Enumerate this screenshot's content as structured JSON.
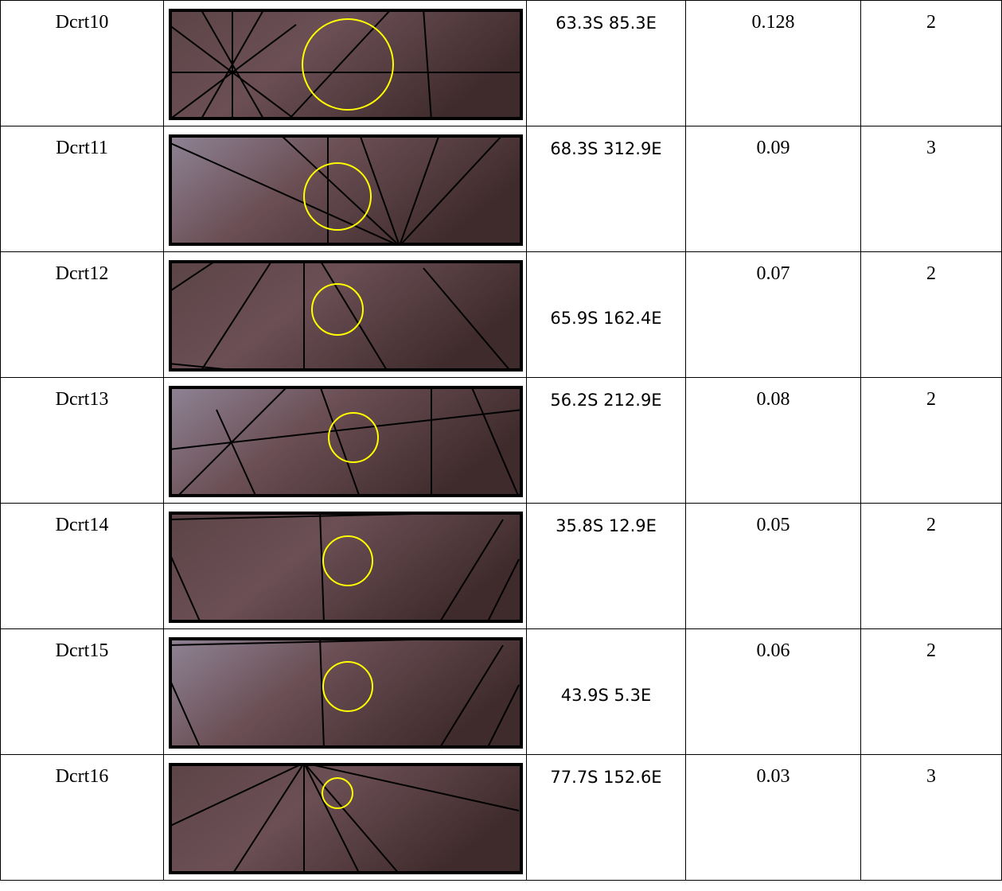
{
  "table": {
    "rows": [
      [
        "Dcrt10",
        "63.3S 85.3E",
        "0.128",
        "2"
      ],
      [
        "Dcrt11",
        "68.3S 312.9E",
        "0.09",
        "3"
      ],
      [
        "Dcrt12",
        "65.9S 162.4E",
        "0.07",
        "2"
      ],
      [
        "Dcrt13",
        "56.2S 212.9E",
        "0.08",
        "2"
      ],
      [
        "Dcrt14",
        "35.8S 12.9E",
        "0.05",
        "2"
      ],
      [
        "Dcrt15",
        "43.9S 5.3E",
        "0.06",
        "2"
      ],
      [
        "Dcrt16",
        "77.7S 152.6E",
        "0.03",
        "3"
      ]
    ]
  }
}
